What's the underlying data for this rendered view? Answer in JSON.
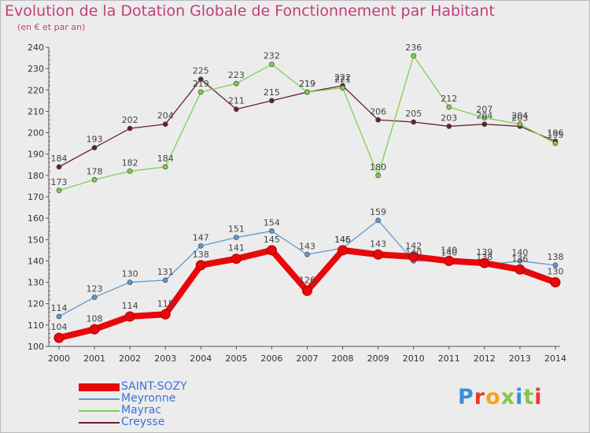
{
  "title": "Evolution de la Dotation Globale de Fonctionnement par Habitant",
  "subtitle": "(en € et par an)",
  "logo": {
    "text": "Proxiti",
    "letter_colors": [
      "#3b8fd6",
      "#e8392b",
      "#f2a518",
      "#8bc34a",
      "#3b8fd6",
      "#8bc34a",
      "#e8392b"
    ]
  },
  "chart_data": {
    "type": "line",
    "title": "Evolution de la Dotation Globale de Fonctionnement par Habitant",
    "subtitle": "(en € et par an)",
    "x": [
      "2000",
      "2001",
      "2002",
      "2003",
      "2004",
      "2005",
      "2006",
      "2007",
      "2008",
      "2009",
      "2010",
      "2011",
      "2012",
      "2013",
      "2014"
    ],
    "ylim": [
      100,
      240
    ],
    "yticks": [
      100,
      110,
      120,
      130,
      140,
      150,
      160,
      170,
      180,
      190,
      200,
      210,
      220,
      230,
      240
    ],
    "grid": false,
    "legend_position": "bottom-left",
    "series": [
      {
        "name": "SAINT-SOZY",
        "color": "#e8080b",
        "values": [
          104,
          108,
          114,
          115,
          138,
          141,
          145,
          126,
          145,
          143,
          142,
          140,
          139,
          136,
          130
        ]
      },
      {
        "name": "Meyronne",
        "color": "#5b9bd5",
        "values": [
          114,
          123,
          130,
          131,
          147,
          151,
          154,
          143,
          146,
          159,
          140,
          140,
          138,
          140,
          138
        ]
      },
      {
        "name": "Mayrac",
        "color": "#7fcf4f",
        "values": [
          173,
          178,
          182,
          184,
          219,
          223,
          232,
          219,
          221,
          180,
          236,
          212,
          207,
          204,
          195
        ]
      },
      {
        "name": "Creysse",
        "color": "#6b1f2a",
        "values": [
          184,
          193,
          202,
          204,
          225,
          211,
          215,
          219,
          222,
          206,
          205,
          203,
          204,
          203,
          196
        ]
      }
    ]
  }
}
